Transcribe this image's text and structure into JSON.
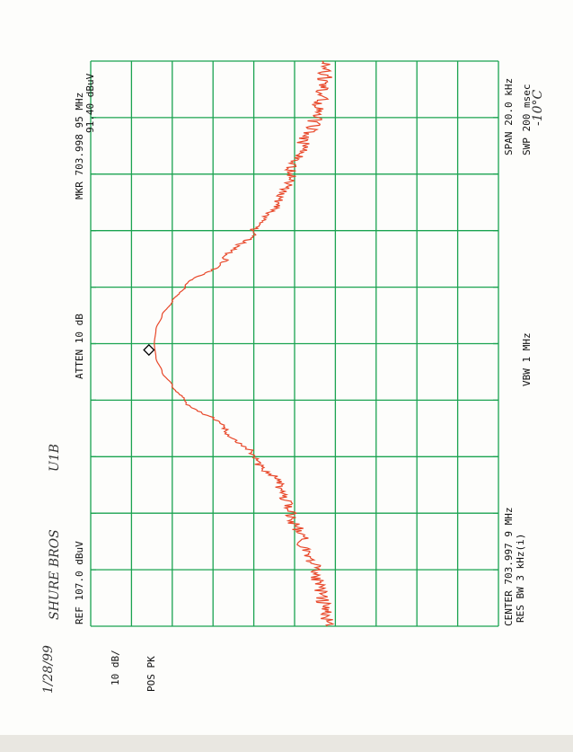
{
  "colors": {
    "grid": "#1aa350",
    "trace": "#e8482a",
    "text": "#111111",
    "paper": "#fdfdfb"
  },
  "annotations": {
    "ref": "REF  107.0 dBuV",
    "scale": "10 dB/",
    "detector": "POS PK",
    "atten": "ATTEN 10 dB",
    "marker_freq": "MKR 703.998 95 MHz",
    "marker_level": "91.40 dBuV",
    "center": "CENTER 703.997 9 MHz",
    "res_bw": "RES BW 3 kHz(i)",
    "vbw": "VBW 1 MHz",
    "span": "SPAN 20.0 kHz",
    "sweep": "SWP 200 msec"
  },
  "handwriting": {
    "date": "1/28/99",
    "company": "SHURE BROS",
    "model": "U1B",
    "temperature": "-10°C"
  },
  "chart_data": {
    "type": "line",
    "orientation": "rotated 90° (frequency axis vertical, amplitude axis horizontal)",
    "grid": true,
    "grid_divisions": {
      "frequency": 10,
      "amplitude": 10
    },
    "xlim_khz_offset": [
      -10,
      10
    ],
    "ylim_dbuv": [
      7,
      107
    ],
    "marker": {
      "freq_mhz": 703.99895,
      "level_dbuv": 91.4
    },
    "series": [
      {
        "x_khz_offset": [
          -10,
          -9,
          -8,
          -7,
          -6,
          -5,
          -4,
          -3,
          -2,
          -1.5,
          -1,
          -0.5,
          0,
          0.5,
          1,
          1.5,
          2,
          3,
          4,
          5,
          6,
          7,
          8,
          9,
          10
        ],
        "y_dbuv": [
          49,
          50,
          52,
          55,
          58,
          61,
          67,
          74,
          84,
          87,
          89.5,
          91,
          91.4,
          91,
          89.5,
          87,
          84,
          74,
          67,
          61,
          58,
          55,
          52,
          50,
          49
        ]
      }
    ]
  }
}
